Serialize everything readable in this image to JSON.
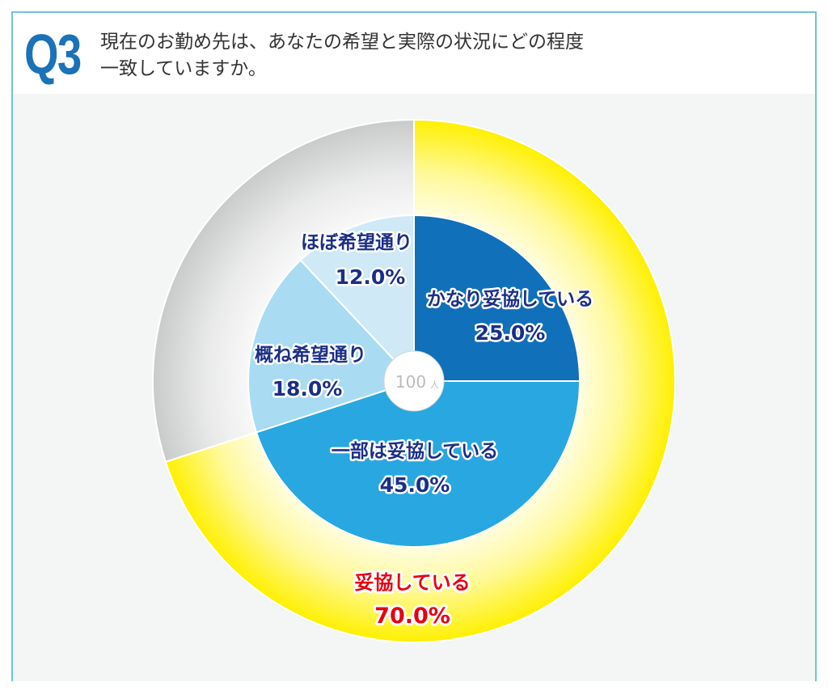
{
  "header": {
    "question_number": "Q3",
    "question_line1": "現在のお勤め先は、あなたの希望と実際の状況にどの程度",
    "question_line2": "一致していますか。"
  },
  "chart_data": [
    {
      "type": "pie",
      "subtype": "donut-outer-ring",
      "labels": [
        "妥協している",
        ""
      ],
      "values": [
        70.0,
        30.0
      ],
      "value_labels": [
        "70.0%",
        ""
      ],
      "colors": [
        "#fff000",
        "#c9caca"
      ]
    },
    {
      "type": "pie",
      "subtype": "inner-pie",
      "labels": [
        "かなり妥協している",
        "一部は妥協している",
        "概ね希望通り",
        "ほぼ希望通り"
      ],
      "values": [
        25.0,
        45.0,
        18.0,
        12.0
      ],
      "value_labels": [
        "25.0%",
        "45.0%",
        "18.0%",
        "12.0%"
      ],
      "colors": [
        "#1070ba",
        "#29a7e1",
        "#a9dcf2",
        "#cfeaf6"
      ],
      "center_label": "100",
      "center_unit": "人"
    }
  ],
  "colors": {
    "label_blue": "#1b2f87",
    "label_red": "#e60012",
    "center_text": "#bbbbbb"
  }
}
